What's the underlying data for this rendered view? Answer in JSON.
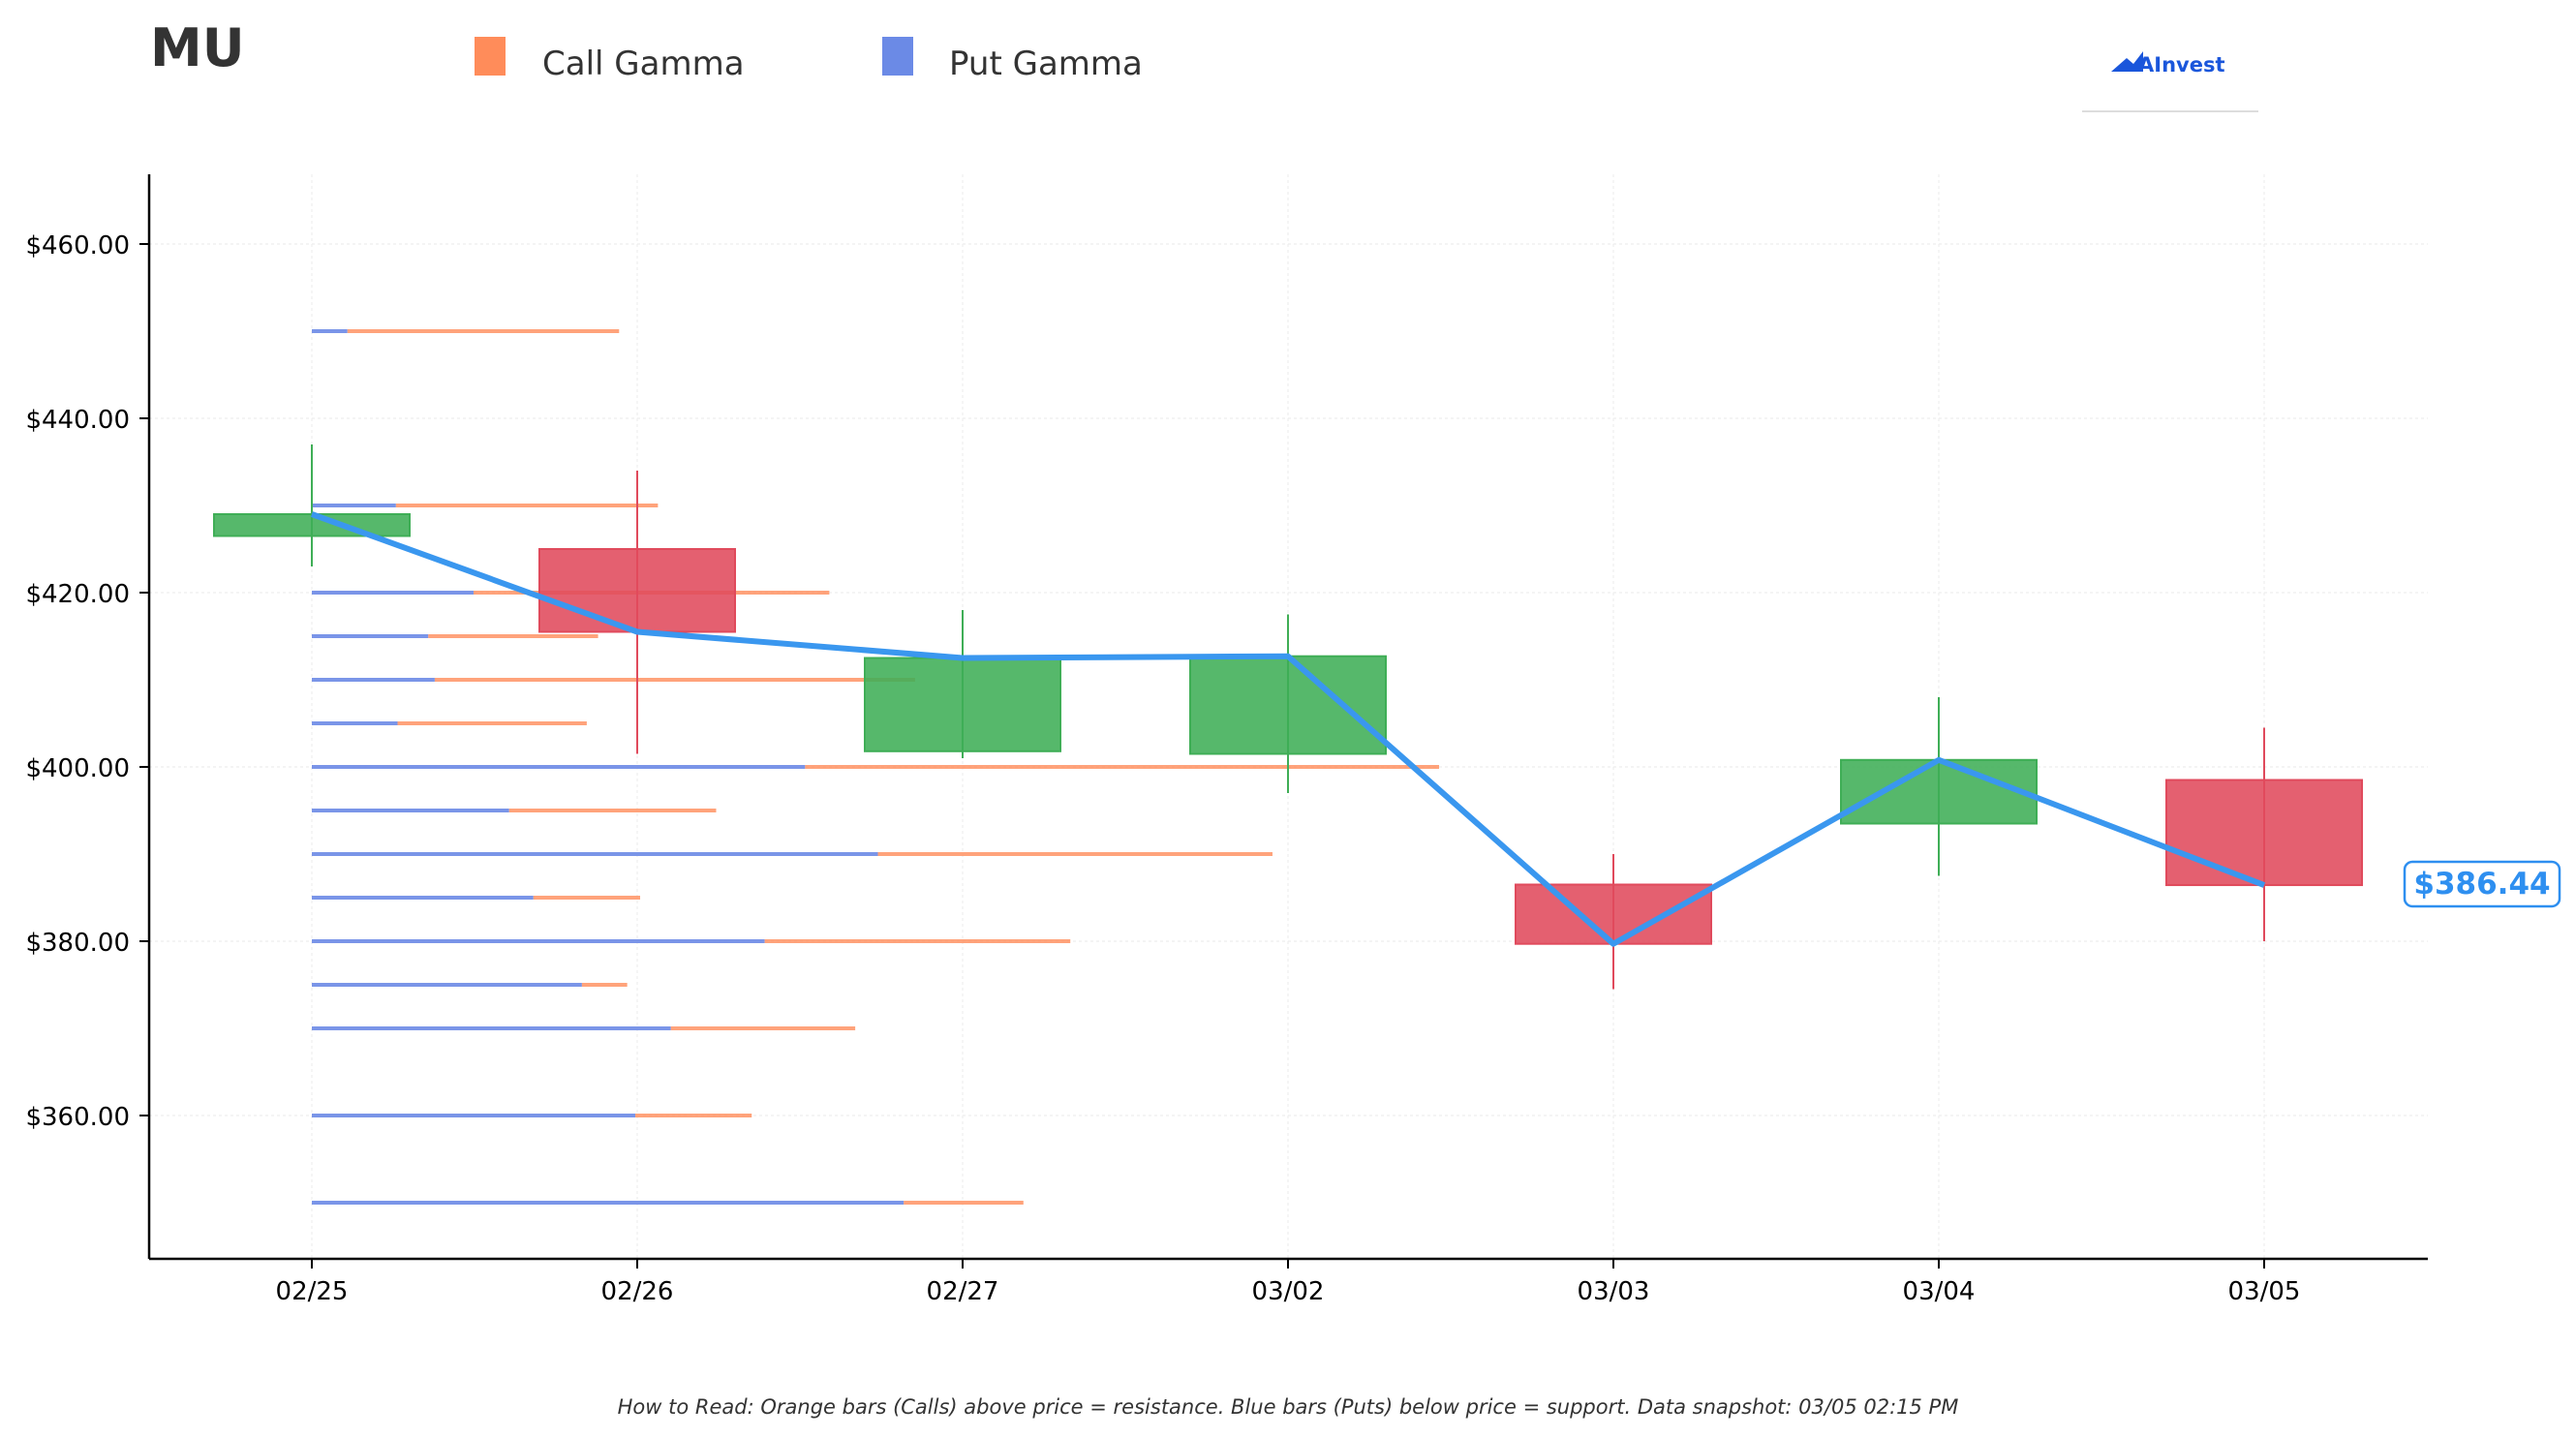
{
  "ticker": "MU",
  "brand": {
    "name": "AInvest",
    "color": "#1a56db"
  },
  "legend": [
    {
      "label": "Call Gamma",
      "color": "#ff8c5a"
    },
    {
      "label": "Put Gamma",
      "color": "#6b8ae6"
    }
  ],
  "footnote": "How to Read: Orange bars (Calls) above price = resistance. Blue bars (Puts) below price = support. Data snapshot: 03/05 02:15 PM",
  "chart_data": {
    "type": "candlestick",
    "categories": [
      "02/25",
      "02/26",
      "02/27",
      "03/02",
      "03/03",
      "03/04",
      "03/05"
    ],
    "ohlc": [
      {
        "date": "02/25",
        "open": 426.5,
        "high": 437.0,
        "low": 423.0,
        "close": 429.0
      },
      {
        "date": "02/26",
        "open": 425.0,
        "high": 434.0,
        "low": 401.5,
        "close": 415.5
      },
      {
        "date": "02/27",
        "open": 401.8,
        "high": 418.0,
        "low": 401.0,
        "close": 412.5
      },
      {
        "date": "03/02",
        "open": 401.5,
        "high": 417.5,
        "low": 397.0,
        "close": 412.7
      },
      {
        "date": "03/03",
        "open": 386.5,
        "high": 390.0,
        "low": 374.5,
        "close": 379.7
      },
      {
        "date": "03/04",
        "open": 393.5,
        "high": 408.0,
        "low": 387.5,
        "close": 400.8
      },
      {
        "date": "03/05",
        "open": 398.5,
        "high": 404.5,
        "low": 380.0,
        "close": 386.44
      }
    ],
    "close_line": [
      429.0,
      415.5,
      412.5,
      412.7,
      379.7,
      400.8,
      386.44
    ],
    "last_price_label": "$386.44",
    "gamma_levels": [
      {
        "strike": 450,
        "put": 0.22,
        "call": 1.68
      },
      {
        "strike": 430,
        "put": 0.52,
        "call": 1.62
      },
      {
        "strike": 420,
        "put": 1.0,
        "call": 2.2
      },
      {
        "strike": 415,
        "put": 0.72,
        "call": 1.05
      },
      {
        "strike": 410,
        "put": 0.76,
        "call": 2.97
      },
      {
        "strike": 405,
        "put": 0.53,
        "call": 1.17
      },
      {
        "strike": 400,
        "put": 3.05,
        "call": 3.92
      },
      {
        "strike": 395,
        "put": 1.22,
        "call": 1.28
      },
      {
        "strike": 390,
        "put": 3.5,
        "call": 2.44
      },
      {
        "strike": 385,
        "put": 1.37,
        "call": 0.66
      },
      {
        "strike": 380,
        "put": 2.8,
        "call": 1.89
      },
      {
        "strike": 375,
        "put": 1.67,
        "call": 0.28
      },
      {
        "strike": 370,
        "put": 2.22,
        "call": 1.14
      },
      {
        "strike": 360,
        "put": 2.0,
        "call": 0.72
      },
      {
        "strike": 350,
        "put": 3.66,
        "call": 0.74
      }
    ],
    "y_ticks": [
      "$360.00",
      "$380.00",
      "$400.00",
      "$420.00",
      "$440.00",
      "$460.00"
    ],
    "y_tick_values": [
      360,
      380,
      400,
      420,
      440,
      460
    ],
    "ylim": [
      343,
      468
    ],
    "grid": true,
    "colors": {
      "up": "#3fae56",
      "down": "#e04a5c",
      "line": "#3a97ef",
      "label": "#2e8ff0"
    }
  }
}
